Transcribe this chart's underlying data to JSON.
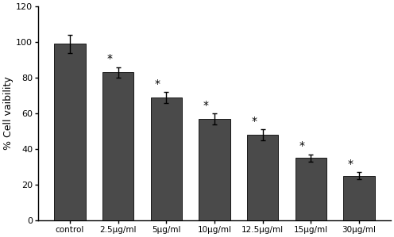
{
  "categories": [
    "control",
    "2.5μg/ml",
    "5μg/ml",
    "10μg/ml",
    "12.5μg/ml",
    "15μg/ml",
    "30μg/ml"
  ],
  "values": [
    99,
    83,
    69,
    57,
    48,
    35,
    25
  ],
  "errors": [
    5,
    3,
    3,
    3,
    3,
    2,
    2
  ],
  "bar_color": "#4a4a4a",
  "ylabel": "% Cell vaibility",
  "ylim": [
    0,
    120
  ],
  "yticks": [
    0,
    20,
    40,
    60,
    80,
    100,
    120
  ],
  "show_asterisk": [
    false,
    true,
    true,
    true,
    true,
    true,
    true
  ],
  "background_color": "#ffffff",
  "edgecolor": "#1a1a1a",
  "bar_width": 0.65
}
